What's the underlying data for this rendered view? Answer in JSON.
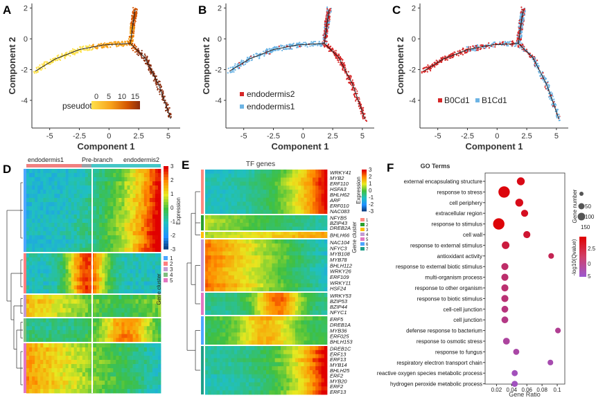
{
  "panels": {
    "A": {
      "label": "A",
      "legend_title": "pseudotime",
      "legend_ticks": [
        "0",
        "5",
        "10",
        "15"
      ]
    },
    "B": {
      "label": "B",
      "legend": [
        "endodermis2",
        "endodermis1"
      ]
    },
    "C": {
      "label": "C",
      "legend": [
        "B0Cd1",
        "B1Cd1"
      ]
    },
    "D": {
      "label": "D",
      "header": [
        "endodermis1",
        "Pre-branch",
        "endodermis2"
      ],
      "colorbar_title": "Expression",
      "colorbar_ticks": [
        "3",
        "2",
        "1",
        "0",
        "-1",
        "-2",
        "-3"
      ],
      "cluster_title": "Gene cluster",
      "clusters": [
        "1",
        "2",
        "3",
        "4",
        "5"
      ]
    },
    "E": {
      "label": "E",
      "title": "TF genes",
      "colorbar_title": "Expression",
      "colorbar_ticks": [
        "3",
        "2",
        "1",
        "0",
        "-1",
        "-2",
        "-3"
      ],
      "cluster_title": "Gene cluster",
      "clusters": [
        "1",
        "2",
        "3",
        "4",
        "5",
        "6",
        "7"
      ],
      "genes": [
        "WRKY41",
        "MYB2",
        "ERF110",
        "HSFA3",
        "BHLH62",
        "ARF",
        "ERF010",
        "NAC083",
        "NFYB5",
        "BZIP43",
        "DREB2A",
        "BHLH66",
        "NAC104",
        "NFYC3",
        "MYB108",
        "MYB78",
        "BHLH112",
        "WRKY26",
        "ERF109",
        "WRKY11",
        "HSF24",
        "WRKY53",
        "BZIP53",
        "BZIP44",
        "NFYC1",
        "ERF5",
        "DREB1A",
        "MYB36",
        "ERF025",
        "BHLH153",
        "DREB1C",
        "ERF13",
        "ERF13",
        "MYB14",
        "BHLH25",
        "ERF2",
        "MYB20",
        "ERF2",
        "ERF13"
      ]
    },
    "F": {
      "label": "F",
      "title": "GO Terms",
      "xlabel": "Gene Ratio",
      "size_title": "Gene number",
      "size_ticks": [
        "50",
        "100",
        "150"
      ],
      "color_title": "-log10(Qvalue)",
      "color_ticks": [
        "2.5",
        "0",
        "5"
      ]
    }
  },
  "chart_data": [
    {
      "type": "scatter",
      "id": "A",
      "xlabel": "Component 1",
      "ylabel": "Component 2",
      "xticks": [
        "-5",
        "-2.5",
        "0",
        "2.5",
        "5"
      ],
      "yticks": [
        "2",
        "0",
        "-2",
        "-4"
      ],
      "xlim": [
        -6.5,
        6
      ],
      "ylim": [
        -5.8,
        2.3
      ],
      "trajectory": [
        [
          -6.2,
          -2.1
        ],
        [
          -4.5,
          -1.3
        ],
        [
          -2.5,
          -0.7
        ],
        [
          -0.5,
          -0.4
        ],
        [
          1.8,
          -0.3
        ],
        [
          2.0,
          0.9
        ],
        [
          2.2,
          1.9
        ],
        [
          1.8,
          -0.3
        ],
        [
          3.0,
          -1.2
        ],
        [
          4.2,
          -3.0
        ],
        [
          5.2,
          -5.2
        ]
      ],
      "color_scale": {
        "min": 0,
        "max": 17,
        "colors": [
          "#ffe14a",
          "#f7a21b",
          "#d35400",
          "#8b2d0e"
        ]
      }
    },
    {
      "type": "scatter",
      "id": "B",
      "xlabel": "Component 1",
      "ylabel": "Component 2",
      "xticks": [
        "-5",
        "-2.5",
        "0",
        "2.5",
        "5"
      ],
      "yticks": [
        "2",
        "0",
        "-2",
        "-4"
      ],
      "series": [
        {
          "name": "endodermis2",
          "color": "#d62728"
        },
        {
          "name": "endodermis1",
          "color": "#6cb4e4"
        }
      ]
    },
    {
      "type": "scatter",
      "id": "C",
      "xlabel": "Component 1",
      "ylabel": "Component 2",
      "xticks": [
        "-5",
        "-2.5",
        "0",
        "2.5",
        "5"
      ],
      "yticks": [
        "2",
        "0",
        "-2",
        "-4"
      ],
      "series": [
        {
          "name": "B0Cd1",
          "color": "#d62728"
        },
        {
          "name": "B1Cd1",
          "color": "#6cb4e4"
        }
      ]
    },
    {
      "type": "heatmap",
      "id": "D",
      "colorscale": [
        "#08306b",
        "#1e90ff",
        "#20c0c0",
        "#40c040",
        "#e8e820",
        "#ff8c00",
        "#e00000"
      ],
      "cluster_colors": [
        "#4da6ff",
        "#ff7f7f",
        "#c39bd3",
        "#7fbf7f",
        "#e377c2"
      ]
    },
    {
      "type": "heatmap",
      "id": "E",
      "cluster_colors": [
        "#ff8a80",
        "#2ca02c",
        "#ffbf00",
        "#c39bd3",
        "#e377c2",
        "#4da6ff",
        "#1f9e89"
      ]
    },
    {
      "type": "scatter",
      "id": "F",
      "xlabel": "Gene Ratio",
      "xticks": [
        "0.02",
        "0.04",
        "0.06",
        "0.08",
        "0.1"
      ],
      "xlim": [
        0.005,
        0.11
      ],
      "terms": [
        {
          "name": "external encapsulating structure",
          "ratio": 0.052,
          "size": 55,
          "q": 0.5
        },
        {
          "name": "response to stress",
          "ratio": 0.03,
          "size": 150,
          "q": 0.3
        },
        {
          "name": "cell periphery",
          "ratio": 0.05,
          "size": 55,
          "q": 0.6
        },
        {
          "name": "extracellular region",
          "ratio": 0.057,
          "size": 40,
          "q": 0.8
        },
        {
          "name": "response to stimulus",
          "ratio": 0.023,
          "size": 150,
          "q": 0.2
        },
        {
          "name": "cell wall",
          "ratio": 0.06,
          "size": 40,
          "q": 1.2
        },
        {
          "name": "response to external stimulus",
          "ratio": 0.032,
          "size": 50,
          "q": 1.5
        },
        {
          "name": "antioxidant activity",
          "ratio": 0.092,
          "size": 20,
          "q": 2.0
        },
        {
          "name": "response to external biotic stimulus",
          "ratio": 0.031,
          "size": 40,
          "q": 2.5
        },
        {
          "name": "multi-organism process",
          "ratio": 0.031,
          "size": 40,
          "q": 2.6
        },
        {
          "name": "response to other organism",
          "ratio": 0.031,
          "size": 40,
          "q": 2.7
        },
        {
          "name": "response to biotic stimulus",
          "ratio": 0.031,
          "size": 40,
          "q": 2.8
        },
        {
          "name": "cell-cell junction",
          "ratio": 0.031,
          "size": 35,
          "q": 3.0
        },
        {
          "name": "cell junction",
          "ratio": 0.031,
          "size": 35,
          "q": 3.2
        },
        {
          "name": "defense response to bacterium",
          "ratio": 0.101,
          "size": 20,
          "q": 3.5
        },
        {
          "name": "response to osmotic stress",
          "ratio": 0.033,
          "size": 35,
          "q": 3.8
        },
        {
          "name": "response to fungus",
          "ratio": 0.046,
          "size": 25,
          "q": 4.0
        },
        {
          "name": "respiratory electron transport chain",
          "ratio": 0.091,
          "size": 20,
          "q": 4.2
        },
        {
          "name": "reactive oxygen species metabolic process",
          "ratio": 0.044,
          "size": 25,
          "q": 4.5
        },
        {
          "name": "hydrogen peroxide metabolic process",
          "ratio": 0.044,
          "size": 25,
          "q": 4.6
        }
      ]
    }
  ]
}
